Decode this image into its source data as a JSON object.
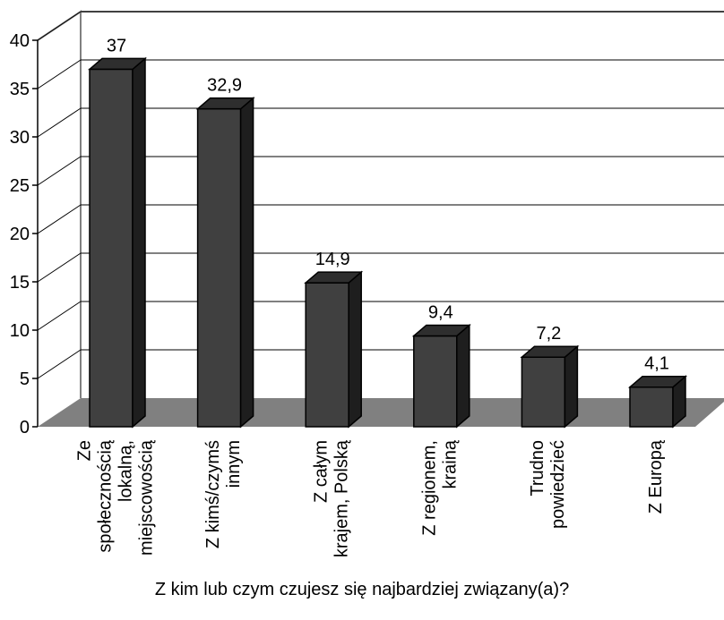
{
  "chart_data": {
    "type": "bar",
    "categories": [
      [
        "Ze",
        "społecznością",
        "lokalną,",
        "miejscowością"
      ],
      [
        "Z kimś/czymś",
        "innym"
      ],
      [
        "Z całym",
        "krajem, Polską"
      ],
      [
        "Z regionem,",
        "krainą"
      ],
      [
        "Trudno",
        "powiedzieć"
      ],
      [
        "Z Europą"
      ]
    ],
    "values": [
      37,
      32.9,
      14.9,
      9.4,
      7.2,
      4.1
    ],
    "data_labels": [
      "37",
      "32,9",
      "14,9",
      "9,4",
      "7,2",
      "4,1"
    ],
    "yticks": [
      "0",
      "5",
      "10",
      "15",
      "20",
      "25",
      "30",
      "35",
      "40"
    ],
    "ylim": [
      0,
      40
    ],
    "title": "",
    "xlabel": "Z kim lub czym czujesz się najbardziej związany(a)?",
    "ylabel": "",
    "grid": true,
    "legend": "none",
    "colors": {
      "bar_front": "#404040",
      "bar_side": "#1e1e1e",
      "bar_top": "#2e2e2e",
      "floor": "#808080",
      "grid": "#000000",
      "wall_edge": "#808080"
    }
  }
}
